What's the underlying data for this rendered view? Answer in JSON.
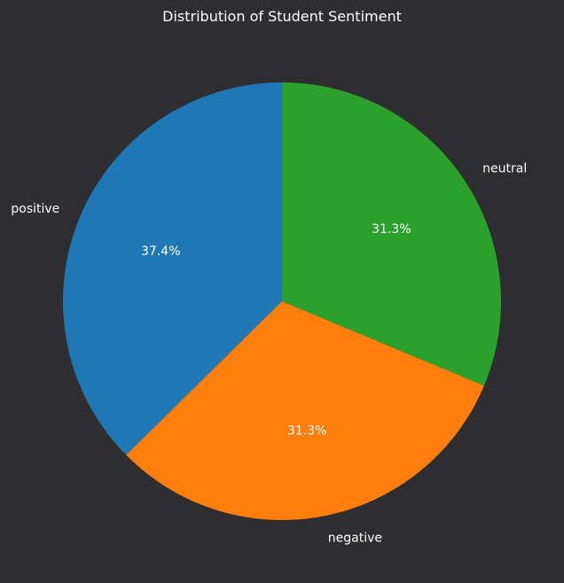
{
  "chart_data": {
    "type": "pie",
    "title": "Distribution of Student Sentiment",
    "slices": [
      {
        "label": "positive",
        "value": 37.4,
        "display": "37.4%",
        "color": "#1f77b4"
      },
      {
        "label": "negative",
        "value": 31.3,
        "display": "31.3%",
        "color": "#ff7f0e"
      },
      {
        "label": "neutral",
        "value": 31.3,
        "display": "31.3%",
        "color": "#2ca02c"
      }
    ],
    "start_angle_deg": 90,
    "direction": "counterclockwise"
  },
  "colors": {
    "background": "#2e2e30",
    "text": "#ffffff"
  }
}
